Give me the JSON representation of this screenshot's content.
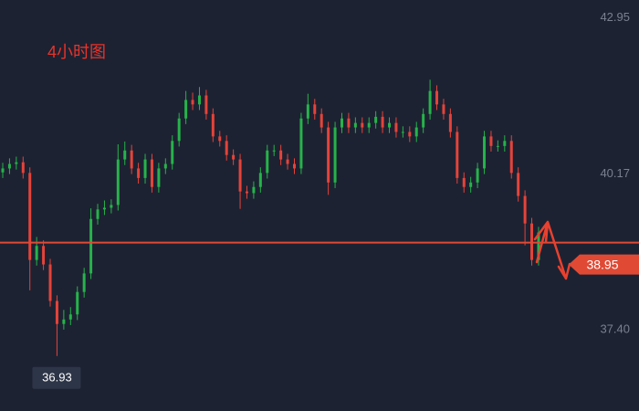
{
  "chart_data": {
    "type": "candlestick",
    "title": "4小时图",
    "open": [
      40.2,
      40.27,
      40.35,
      40.38,
      40.19,
      38.64,
      38.89,
      38.56,
      37.91,
      37.5,
      37.58,
      37.67,
      38.07,
      38.4,
      39.37,
      39.54,
      39.57,
      39.62,
      40.43,
      40.59,
      40.27,
      40.1,
      40.43,
      39.94,
      40.27,
      40.35,
      40.76,
      41.16,
      41.49,
      41.41,
      41.57,
      41.24,
      40.84,
      40.76,
      40.51,
      40.43,
      39.86,
      39.83,
      39.94,
      40.19,
      40.59,
      40.59,
      40.43,
      40.35,
      40.27,
      41.16,
      41.41,
      41.24,
      41.0,
      40.02,
      41.0,
      41.16,
      41.0,
      41.08,
      41.0,
      41.08,
      41.19,
      41.0,
      41.08,
      40.92,
      40.92,
      40.84,
      41.0,
      41.24,
      41.65,
      41.41,
      41.24,
      40.92,
      40.1,
      39.94,
      40.02,
      40.27,
      40.84,
      40.67,
      40.67,
      40.76,
      40.19,
      39.78,
      39.29,
      38.64
    ],
    "high": [
      40.37,
      40.45,
      40.48,
      40.48,
      40.29,
      39.05,
      38.99,
      38.66,
      38.01,
      37.75,
      37.8,
      38.17,
      38.5,
      39.56,
      39.64,
      39.7,
      39.72,
      40.7,
      40.75,
      40.69,
      40.37,
      40.53,
      40.53,
      40.37,
      40.45,
      40.86,
      41.26,
      41.65,
      41.62,
      41.72,
      41.67,
      41.34,
      40.94,
      40.86,
      40.61,
      40.53,
      39.96,
      40.04,
      40.29,
      40.69,
      40.69,
      40.69,
      40.53,
      40.45,
      41.26,
      41.6,
      41.51,
      41.34,
      41.1,
      41.1,
      41.26,
      41.26,
      41.18,
      41.18,
      41.18,
      41.29,
      41.29,
      41.18,
      41.18,
      41.02,
      41.02,
      41.1,
      41.34,
      41.85,
      41.75,
      41.51,
      41.34,
      41.02,
      40.2,
      40.12,
      40.37,
      40.94,
      40.94,
      40.77,
      40.86,
      40.86,
      40.29,
      39.88,
      39.39,
      39.23
    ],
    "low": [
      40.1,
      40.17,
      40.25,
      40.09,
      38.1,
      38.54,
      38.46,
      37.81,
      36.93,
      37.4,
      37.48,
      37.57,
      37.97,
      38.3,
      39.27,
      39.44,
      39.47,
      39.52,
      40.33,
      40.17,
      40.0,
      40.0,
      39.84,
      39.84,
      40.17,
      40.25,
      40.66,
      41.06,
      41.31,
      41.31,
      41.14,
      40.74,
      40.66,
      40.41,
      40.33,
      39.55,
      39.73,
      39.73,
      39.84,
      40.09,
      40.49,
      40.33,
      40.25,
      40.17,
      40.17,
      41.06,
      41.14,
      40.9,
      39.8,
      39.92,
      40.9,
      40.9,
      40.9,
      40.9,
      40.9,
      40.98,
      40.9,
      40.9,
      40.82,
      40.82,
      40.74,
      40.74,
      40.9,
      41.14,
      41.31,
      41.14,
      40.82,
      40.0,
      39.84,
      39.84,
      39.92,
      40.17,
      40.57,
      40.57,
      40.57,
      40.09,
      39.68,
      38.9,
      38.54,
      38.54
    ],
    "close": [
      40.27,
      40.35,
      40.38,
      40.19,
      38.64,
      38.89,
      38.56,
      37.91,
      37.5,
      37.58,
      37.67,
      38.07,
      38.4,
      39.37,
      39.54,
      39.57,
      39.62,
      40.43,
      40.59,
      40.27,
      40.1,
      40.43,
      39.94,
      40.27,
      40.35,
      40.76,
      41.16,
      41.49,
      41.41,
      41.57,
      41.24,
      40.84,
      40.76,
      40.51,
      40.43,
      39.86,
      39.83,
      39.94,
      40.19,
      40.59,
      40.59,
      40.43,
      40.35,
      40.27,
      41.16,
      41.41,
      41.24,
      41.0,
      40.02,
      41.0,
      41.16,
      41.0,
      41.08,
      41.0,
      41.08,
      41.19,
      41.0,
      41.08,
      40.92,
      40.92,
      40.84,
      41.0,
      41.24,
      41.65,
      41.41,
      41.24,
      40.92,
      40.1,
      39.94,
      40.02,
      40.27,
      40.84,
      40.67,
      40.67,
      40.76,
      40.19,
      39.78,
      39.29,
      38.64,
      39.13
    ],
    "up_color": "#26b34a",
    "down_color": "#e5433a",
    "ylim": [
      35.95,
      43.27
    ],
    "yticks": [
      {
        "value": 37.4,
        "label": "37.40"
      },
      40.17,
      42.95
    ],
    "current_price": 38.95,
    "low_price": 36.93,
    "line_color": "#e04a35"
  }
}
